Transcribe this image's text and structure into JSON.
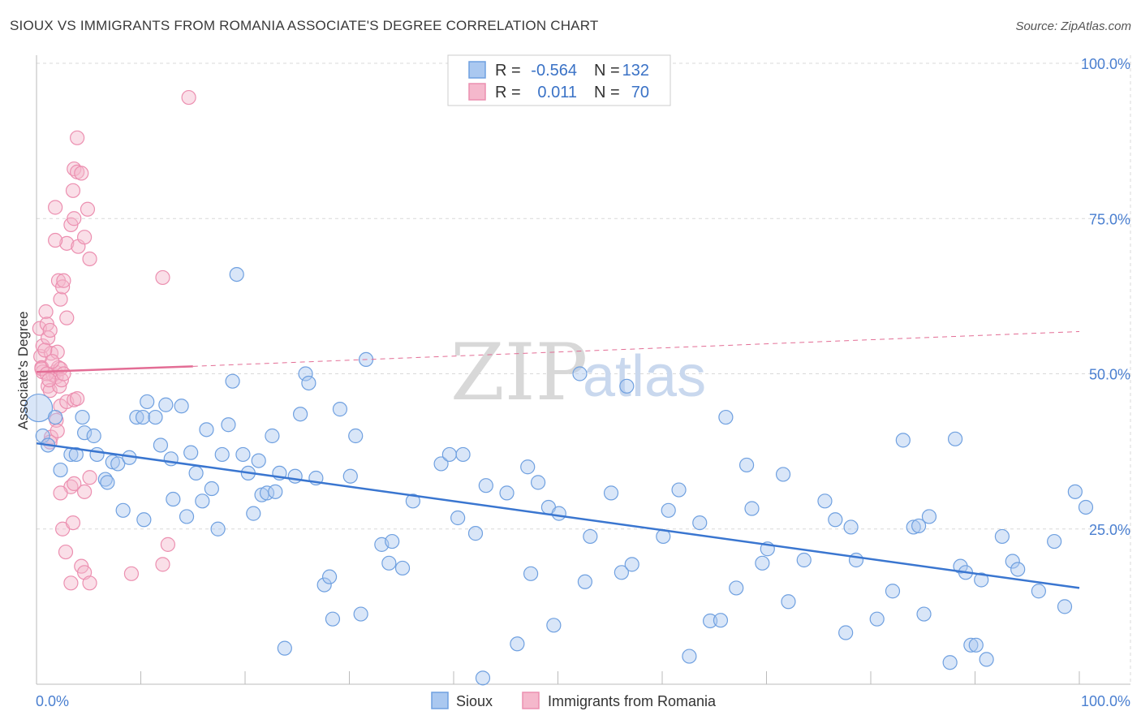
{
  "title": "SIOUX VS IMMIGRANTS FROM ROMANIA ASSOCIATE'S DEGREE CORRELATION CHART",
  "source": "Source: ZipAtlas.com",
  "watermark": {
    "zip": "ZIP",
    "atlas": "atlas"
  },
  "colors": {
    "sioux": "#6fa0e0",
    "sioux_fill": "#aac8f0",
    "sioux_line": "#3a76d0",
    "romania": "#ec8fb0",
    "romania_fill": "#f5b8cc",
    "romania_line": "#e36d95",
    "grid": "#d9d9d9",
    "axis_text": "#4a7fd0"
  },
  "legend": {
    "row1": {
      "r_label": "R =",
      "r_value": "-0.564",
      "n_label": "N =",
      "n_value": "132"
    },
    "row2": {
      "r_label": "R =",
      "r_value": "0.011",
      "n_label": "N =",
      "n_value": "70"
    }
  },
  "chart_data": {
    "type": "scatter",
    "title": "SIOUX VS IMMIGRANTS FROM ROMANIA ASSOCIATE'S DEGREE CORRELATION CHART",
    "xlabel": "",
    "ylabel": "Associate's Degree",
    "xlim": [
      0,
      100
    ],
    "ylim": [
      0,
      100
    ],
    "x_tick_labels": [
      "0.0%",
      "100.0%"
    ],
    "y_tick_labels": [
      "25.0%",
      "50.0%",
      "75.0%",
      "100.0%"
    ],
    "y_ticks": [
      25,
      50,
      75,
      100
    ],
    "grid": true,
    "legend_position": "bottom",
    "series": [
      {
        "name": "Sioux",
        "r": -0.564,
        "n": 132,
        "trend": {
          "x": [
            0,
            100
          ],
          "y": [
            38.8,
            15.5
          ],
          "dashed_after": null
        },
        "points": [
          [
            0.2,
            44.5
          ],
          [
            0.6,
            40
          ],
          [
            1.1,
            38.5
          ],
          [
            1.8,
            43
          ],
          [
            2.3,
            34.5
          ],
          [
            3.3,
            37
          ],
          [
            3.8,
            37
          ],
          [
            4.4,
            43
          ],
          [
            4.6,
            40.5
          ],
          [
            5.5,
            40
          ],
          [
            5.8,
            37
          ],
          [
            6.6,
            33
          ],
          [
            6.8,
            32.5
          ],
          [
            7.3,
            35.8
          ],
          [
            7.8,
            35.5
          ],
          [
            8.3,
            28
          ],
          [
            8.9,
            36.5
          ],
          [
            9.6,
            43
          ],
          [
            10.2,
            43
          ],
          [
            10.3,
            26.5
          ],
          [
            10.6,
            45.5
          ],
          [
            11.4,
            43
          ],
          [
            11.9,
            38.5
          ],
          [
            12.4,
            45
          ],
          [
            12.9,
            36.3
          ],
          [
            13.1,
            29.8
          ],
          [
            13.9,
            44.8
          ],
          [
            14.4,
            27
          ],
          [
            14.8,
            37.3
          ],
          [
            15.3,
            34
          ],
          [
            15.9,
            29.5
          ],
          [
            16.3,
            41
          ],
          [
            16.8,
            31.5
          ],
          [
            17.4,
            25
          ],
          [
            17.8,
            37
          ],
          [
            18.4,
            41.8
          ],
          [
            18.8,
            48.8
          ],
          [
            19.2,
            66
          ],
          [
            19.8,
            37
          ],
          [
            20.3,
            34
          ],
          [
            20.8,
            27.5
          ],
          [
            21.3,
            36
          ],
          [
            21.6,
            30.5
          ],
          [
            22.1,
            30.8
          ],
          [
            22.6,
            40
          ],
          [
            22.9,
            31
          ],
          [
            23.3,
            34
          ],
          [
            23.8,
            5.8
          ],
          [
            24.8,
            33.5
          ],
          [
            25.3,
            43.5
          ],
          [
            25.8,
            50
          ],
          [
            26.1,
            48.5
          ],
          [
            26.8,
            33.2
          ],
          [
            27.6,
            16
          ],
          [
            28.1,
            17.3
          ],
          [
            28.4,
            10.5
          ],
          [
            29.1,
            44.3
          ],
          [
            30.1,
            33.5
          ],
          [
            30.6,
            40
          ],
          [
            31.1,
            11.3
          ],
          [
            31.6,
            52.3
          ],
          [
            33.1,
            22.5
          ],
          [
            33.8,
            19.5
          ],
          [
            34.1,
            23
          ],
          [
            35.1,
            18.7
          ],
          [
            36.1,
            29.5
          ],
          [
            38.8,
            35.5
          ],
          [
            39.6,
            37
          ],
          [
            40.4,
            26.8
          ],
          [
            40.9,
            37
          ],
          [
            42.1,
            24.3
          ],
          [
            42.8,
            1
          ],
          [
            43.1,
            32
          ],
          [
            45.1,
            30.8
          ],
          [
            46.1,
            6.5
          ],
          [
            47.1,
            35
          ],
          [
            47.4,
            17.8
          ],
          [
            48.1,
            32.5
          ],
          [
            49.1,
            28.5
          ],
          [
            49.6,
            9.5
          ],
          [
            50.1,
            27.5
          ],
          [
            52.1,
            50
          ],
          [
            52.6,
            16.5
          ],
          [
            53.1,
            23.8
          ],
          [
            55.1,
            30.8
          ],
          [
            56.1,
            18
          ],
          [
            56.6,
            48
          ],
          [
            57.1,
            19.3
          ],
          [
            60.1,
            23.8
          ],
          [
            60.6,
            28
          ],
          [
            61.6,
            31.3
          ],
          [
            62.6,
            4.5
          ],
          [
            63.6,
            26
          ],
          [
            64.6,
            10.2
          ],
          [
            65.6,
            10.3
          ],
          [
            66.1,
            43
          ],
          [
            67.1,
            15.5
          ],
          [
            68.1,
            35.3
          ],
          [
            68.6,
            28.3
          ],
          [
            69.6,
            19.5
          ],
          [
            70.1,
            21.8
          ],
          [
            71.6,
            33.8
          ],
          [
            72.1,
            13.3
          ],
          [
            73.6,
            20
          ],
          [
            75.6,
            29.5
          ],
          [
            76.6,
            26.5
          ],
          [
            77.6,
            8.3
          ],
          [
            78.1,
            25.3
          ],
          [
            78.6,
            20
          ],
          [
            80.6,
            10.5
          ],
          [
            82.1,
            15
          ],
          [
            83.1,
            39.3
          ],
          [
            84.1,
            25.3
          ],
          [
            84.6,
            25.5
          ],
          [
            85.1,
            11.3
          ],
          [
            85.6,
            27
          ],
          [
            87.6,
            3.5
          ],
          [
            88.1,
            39.5
          ],
          [
            88.6,
            19
          ],
          [
            89.1,
            18
          ],
          [
            89.6,
            6.3
          ],
          [
            90.1,
            6.3
          ],
          [
            90.6,
            16.8
          ],
          [
            91.1,
            4
          ],
          [
            92.6,
            23.8
          ],
          [
            93.6,
            19.8
          ],
          [
            94.1,
            18.5
          ],
          [
            96.1,
            15
          ],
          [
            97.6,
            23
          ],
          [
            98.6,
            12.5
          ],
          [
            99.6,
            31
          ],
          [
            101.1,
            28.5
          ]
        ]
      },
      {
        "name": "Immigrants from Romania",
        "r": 0.011,
        "n": 70,
        "trend": {
          "x": [
            0,
            15
          ],
          "y": [
            50.3,
            51.2
          ],
          "dashed_x": [
            15,
            100
          ],
          "dashed_y": [
            51.2,
            56.8
          ]
        },
        "points": [
          [
            0.3,
            57.3
          ],
          [
            0.4,
            52.8
          ],
          [
            0.5,
            51
          ],
          [
            0.6,
            54.5
          ],
          [
            0.6,
            50.3
          ],
          [
            0.9,
            60
          ],
          [
            1.0,
            58
          ],
          [
            1.1,
            55.8
          ],
          [
            1.3,
            57
          ],
          [
            1.4,
            53.3
          ],
          [
            0.5,
            50.8
          ],
          [
            1.1,
            48
          ],
          [
            1.3,
            47.3
          ],
          [
            1.6,
            49.8
          ],
          [
            1.8,
            50.3
          ],
          [
            1.9,
            49.5
          ],
          [
            2.0,
            53.5
          ],
          [
            2.1,
            51
          ],
          [
            2.2,
            48
          ],
          [
            2.3,
            50.8
          ],
          [
            2.4,
            49
          ],
          [
            1.4,
            39.8
          ],
          [
            1.3,
            39
          ],
          [
            1.9,
            42.5
          ],
          [
            2.0,
            40.8
          ],
          [
            1.8,
            76.8
          ],
          [
            2.1,
            65
          ],
          [
            2.3,
            62
          ],
          [
            2.5,
            64
          ],
          [
            2.6,
            65
          ],
          [
            2.9,
            59
          ],
          [
            2.9,
            71
          ],
          [
            3.3,
            74
          ],
          [
            3.5,
            79.5
          ],
          [
            3.6,
            83
          ],
          [
            3.6,
            75
          ],
          [
            3.9,
            88
          ],
          [
            3.9,
            82.5
          ],
          [
            4.0,
            70.5
          ],
          [
            4.3,
            82.3
          ],
          [
            4.6,
            72
          ],
          [
            4.9,
            76.5
          ],
          [
            5.1,
            68.5
          ],
          [
            1.8,
            71.5
          ],
          [
            2.3,
            44.8
          ],
          [
            2.9,
            45.5
          ],
          [
            3.6,
            45.8
          ],
          [
            3.9,
            46
          ],
          [
            3.3,
            31.8
          ],
          [
            3.6,
            32.3
          ],
          [
            4.6,
            31
          ],
          [
            5.1,
            33.3
          ],
          [
            2.3,
            30.8
          ],
          [
            2.5,
            25
          ],
          [
            2.8,
            21.3
          ],
          [
            3.3,
            16.3
          ],
          [
            3.5,
            26
          ],
          [
            4.3,
            19
          ],
          [
            4.6,
            18
          ],
          [
            5.1,
            16.3
          ],
          [
            9.1,
            17.8
          ],
          [
            12.1,
            19.3
          ],
          [
            12.6,
            22.5
          ],
          [
            12.1,
            65.5
          ],
          [
            14.6,
            94.5
          ],
          [
            1.0,
            50
          ],
          [
            0.8,
            53.8
          ],
          [
            1.5,
            52
          ],
          [
            2.6,
            50
          ],
          [
            1.2,
            49
          ]
        ]
      }
    ]
  },
  "bottom_legend": {
    "sioux": "Sioux",
    "romania": "Immigrants from Romania"
  }
}
